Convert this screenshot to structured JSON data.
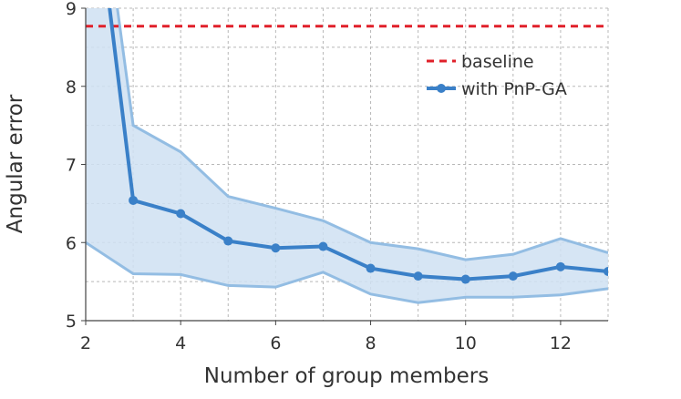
{
  "chart_data": {
    "type": "line",
    "xlabel": "Number of group members",
    "ylabel": "Angular error",
    "xlim": [
      2,
      13
    ],
    "ylim": [
      5,
      9
    ],
    "xticks": [
      2,
      4,
      6,
      8,
      10,
      12
    ],
    "yticks": [
      5,
      6,
      7,
      8,
      9
    ],
    "grid": true,
    "legend_position": "top-right",
    "baseline": {
      "name": "baseline",
      "value": 8.77,
      "color": "#e0202a",
      "style": "dashed"
    },
    "series": [
      {
        "name": "with PnP-GA",
        "color": "#3a80c8",
        "x": [
          2,
          3,
          4,
          5,
          6,
          7,
          8,
          9,
          10,
          11,
          12,
          13
        ],
        "y": [
          11.5,
          6.54,
          6.37,
          6.02,
          5.93,
          5.95,
          5.67,
          5.57,
          5.53,
          5.57,
          5.69,
          5.63
        ],
        "upper": [
          12.0,
          7.5,
          7.16,
          6.59,
          6.44,
          6.28,
          6.0,
          5.92,
          5.78,
          5.85,
          6.05,
          5.87
        ],
        "lower": [
          6.0,
          5.6,
          5.59,
          5.45,
          5.43,
          5.62,
          5.34,
          5.23,
          5.3,
          5.3,
          5.33,
          5.41
        ]
      }
    ]
  }
}
